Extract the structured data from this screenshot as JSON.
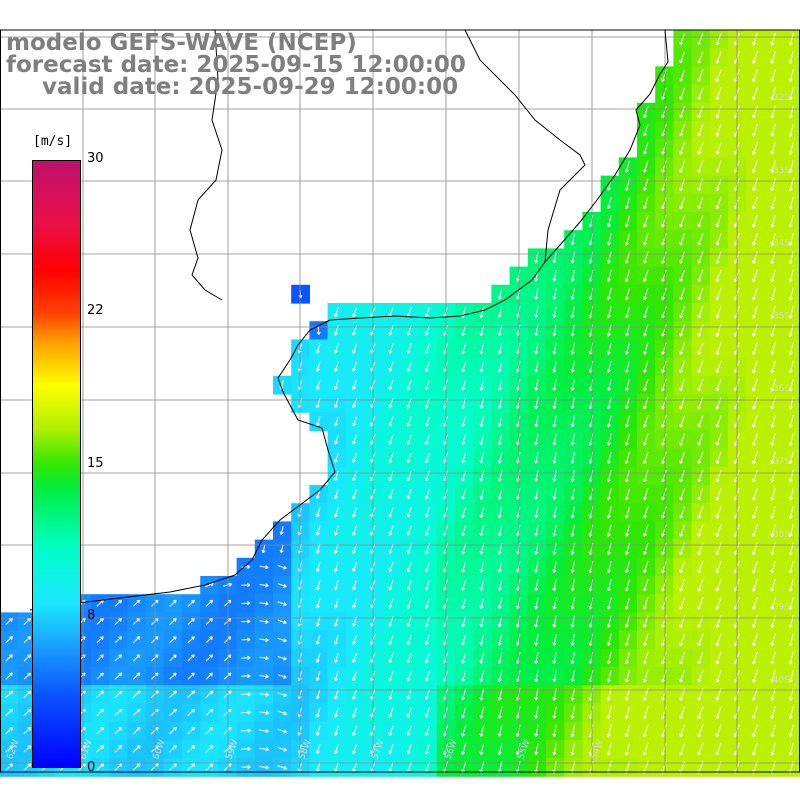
{
  "title": {
    "model": "modelo GEFS-WAVE (NCEP)",
    "forecast": "forecast date: 2025-09-15 12:00:00",
    "valid": "valid date: 2025-09-29 12:00:00"
  },
  "colorbar": {
    "unit": "[m/s]",
    "ticks": [
      "30",
      "22",
      "15",
      "8",
      "0"
    ],
    "range": [
      0,
      30
    ],
    "colors": [
      "#0000ff",
      "#1aa0ff",
      "#1ae8ff",
      "#00ee40",
      "#ffff00",
      "#ff0000",
      "#c0106e"
    ]
  },
  "map": {
    "lat_labels": [
      "32S",
      "33S",
      "34S",
      "35S",
      "36S",
      "37S",
      "38S",
      "39S",
      "40S"
    ],
    "lon_labels": [
      "62W",
      "61W",
      "60W",
      "59W",
      "58W",
      "57W",
      "56W",
      "55W",
      "54W"
    ],
    "coast_color": "#000000",
    "grid_color": "#888888",
    "arrow_color": "#ffffff",
    "flow_direction": "south-southwest offshore, north-east in the southwest corner"
  }
}
